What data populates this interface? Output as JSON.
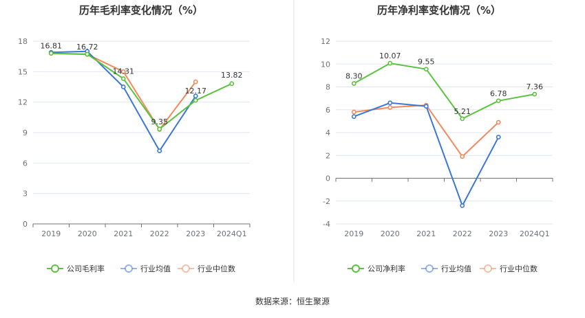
{
  "chart_data": [
    {
      "type": "line",
      "title": "历年毛利率变化情况（%）",
      "categories": [
        "2019",
        "2020",
        "2021",
        "2022",
        "2023",
        "2024Q1"
      ],
      "ylim": [
        0,
        18
      ],
      "yticks": [
        0,
        3,
        6,
        9,
        12,
        15,
        18
      ],
      "grid": true,
      "legend_position": "bottom",
      "series": [
        {
          "name": "公司毛利率",
          "color": "#5ac33d",
          "values": [
            16.81,
            16.72,
            14.31,
            9.35,
            12.17,
            13.82
          ],
          "labels": [
            "16.81",
            "16.72",
            "14.31",
            "9.35",
            "12.17",
            "13.82"
          ]
        },
        {
          "name": "行业均值",
          "color": "#3a76d8",
          "values": [
            16.9,
            17.0,
            13.5,
            7.2,
            12.6,
            null
          ]
        },
        {
          "name": "行业中位数",
          "color": "#f08a5d",
          "values": [
            16.8,
            16.7,
            15.0,
            9.3,
            14.0,
            null
          ]
        }
      ]
    },
    {
      "type": "line",
      "title": "历年净利率变化情况（%）",
      "categories": [
        "2019",
        "2020",
        "2021",
        "2022",
        "2023",
        "2024Q1"
      ],
      "ylim": [
        -4,
        12
      ],
      "yticks": [
        -4,
        -2,
        0,
        2,
        4,
        6,
        8,
        10,
        12
      ],
      "grid": true,
      "legend_position": "bottom",
      "series": [
        {
          "name": "公司净利率",
          "color": "#5ac33d",
          "values": [
            8.3,
            10.07,
            9.55,
            5.21,
            6.78,
            7.36
          ],
          "labels": [
            "8.30",
            "10.07",
            "9.55",
            "5.21",
            "6.78",
            "7.36"
          ]
        },
        {
          "name": "行业均值",
          "color": "#3a76d8",
          "values": [
            5.4,
            6.6,
            6.3,
            -2.4,
            3.6,
            null
          ]
        },
        {
          "name": "行业中位数",
          "color": "#f08a5d",
          "values": [
            5.8,
            6.2,
            6.4,
            1.9,
            4.9,
            null
          ]
        }
      ]
    }
  ],
  "source": "数据来源：恒生聚源"
}
